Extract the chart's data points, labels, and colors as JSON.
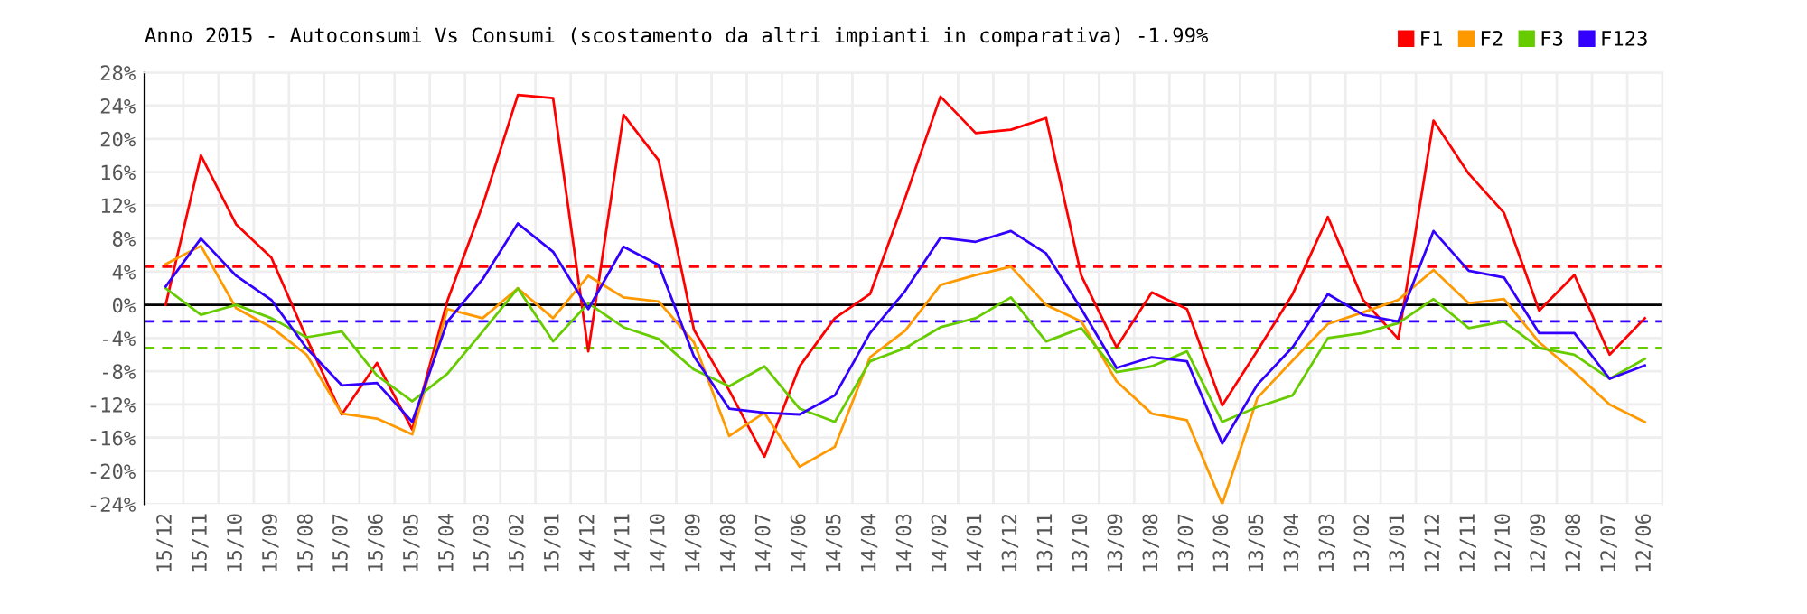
{
  "chart_data": {
    "type": "line",
    "title": "Anno 2015 - Autoconsumi Vs Consumi (scostamento da altri impianti in comparativa) -1.99%",
    "categories": [
      "15/12",
      "15/11",
      "15/10",
      "15/09",
      "15/08",
      "15/07",
      "15/06",
      "15/05",
      "15/04",
      "15/03",
      "15/02",
      "15/01",
      "14/12",
      "14/11",
      "14/10",
      "14/09",
      "14/08",
      "14/07",
      "14/06",
      "14/05",
      "14/04",
      "14/03",
      "14/02",
      "14/01",
      "13/12",
      "13/11",
      "13/10",
      "13/09",
      "13/08",
      "13/07",
      "13/06",
      "13/05",
      "13/04",
      "13/03",
      "13/02",
      "13/01",
      "12/12",
      "12/11",
      "12/10",
      "12/09",
      "12/08",
      "12/07",
      "12/06"
    ],
    "series": [
      {
        "name": "F1",
        "color": "#ff0000",
        "values": [
          0.0,
          18.0,
          9.7,
          5.7,
          -4.0,
          -13.2,
          -7.0,
          -15.0,
          0.5,
          12.0,
          25.3,
          24.9,
          -5.6,
          22.9,
          17.4,
          -3.0,
          -10.3,
          -18.3,
          -7.4,
          -1.6,
          1.3,
          12.9,
          25.1,
          20.7,
          21.1,
          22.5,
          3.5,
          -5.1,
          1.5,
          -0.5,
          -12.1,
          -5.5,
          1.3,
          10.6,
          0.6,
          -4.1,
          22.2,
          15.8,
          11.1,
          -0.7,
          3.6,
          -6.0,
          -1.6
        ]
      },
      {
        "name": "F2",
        "color": "#ff9900",
        "values": [
          4.9,
          7.1,
          -0.4,
          -2.7,
          -6.0,
          -13.1,
          -13.7,
          -15.6,
          -0.5,
          -1.6,
          2.0,
          -1.6,
          3.5,
          0.9,
          0.4,
          -4.5,
          -15.8,
          -13.0,
          -19.5,
          -17.1,
          -6.3,
          -3.1,
          2.4,
          3.6,
          4.6,
          0.0,
          -2.0,
          -9.2,
          -13.1,
          -13.9,
          -24.0,
          -11.2,
          -6.7,
          -2.3,
          -0.9,
          0.6,
          4.2,
          0.2,
          0.7,
          -4.5,
          -8.1,
          -12.0,
          -14.1
        ]
      },
      {
        "name": "F3",
        "color": "#66cc00",
        "values": [
          2.0,
          -1.2,
          0.0,
          -1.6,
          -3.9,
          -3.2,
          -8.5,
          -11.6,
          -8.3,
          -3.2,
          2.0,
          -4.4,
          0.2,
          -2.7,
          -4.1,
          -7.8,
          -9.8,
          -7.4,
          -12.5,
          -14.1,
          -6.8,
          -5.2,
          -2.7,
          -1.6,
          0.9,
          -4.4,
          -2.8,
          -8.1,
          -7.4,
          -5.6,
          -14.1,
          -12.3,
          -10.9,
          -4.0,
          -3.4,
          -2.2,
          0.7,
          -2.8,
          -2.0,
          -5.2,
          -6.0,
          -8.9,
          -6.5
        ]
      },
      {
        "name": "F123",
        "color": "#3300ff",
        "values": [
          2.2,
          8.0,
          3.5,
          0.6,
          -5.2,
          -9.7,
          -9.4,
          -14.1,
          -2.0,
          3.1,
          9.8,
          6.4,
          -0.5,
          7.0,
          4.8,
          -6.2,
          -12.5,
          -13.0,
          -13.2,
          -10.9,
          -3.4,
          1.7,
          8.1,
          7.6,
          8.9,
          6.2,
          -0.5,
          -7.6,
          -6.3,
          -6.8,
          -16.7,
          -9.6,
          -5.1,
          1.3,
          -1.2,
          -2.0,
          8.9,
          4.1,
          3.3,
          -3.4,
          -3.4,
          -8.9,
          -7.3
        ]
      }
    ],
    "ylim": [
      -24,
      28
    ],
    "yticks": [
      {
        "value": -24,
        "label": "-24%"
      },
      {
        "value": -20,
        "label": "-20%"
      },
      {
        "value": -16,
        "label": "-16%"
      },
      {
        "value": -12,
        "label": "-12%"
      },
      {
        "value": -8,
        "label": "-8%"
      },
      {
        "value": -4,
        "label": "-4%"
      },
      {
        "value": 0,
        "label": "0%"
      },
      {
        "value": 4,
        "label": "4%"
      },
      {
        "value": 8,
        "label": "8%"
      },
      {
        "value": 12,
        "label": "12%"
      },
      {
        "value": 16,
        "label": "16%"
      },
      {
        "value": 20,
        "label": "20%"
      },
      {
        "value": 24,
        "label": "24%"
      },
      {
        "value": 28,
        "label": "28%"
      }
    ],
    "ref_lines": [
      {
        "axis": "y",
        "value": 0,
        "color": "#000000",
        "line_style": "solid"
      },
      {
        "axis": "y",
        "value": 4.6,
        "color": "#ff0000",
        "line_style": "dashed"
      },
      {
        "axis": "y",
        "value": -1.99,
        "color": "#3300ff",
        "line_style": "dashed"
      },
      {
        "axis": "y",
        "value": -5.2,
        "color": "#66cc00",
        "line_style": "dashed"
      }
    ],
    "grid": true,
    "legend": "top right",
    "marker": "none",
    "line_style": "solid"
  }
}
